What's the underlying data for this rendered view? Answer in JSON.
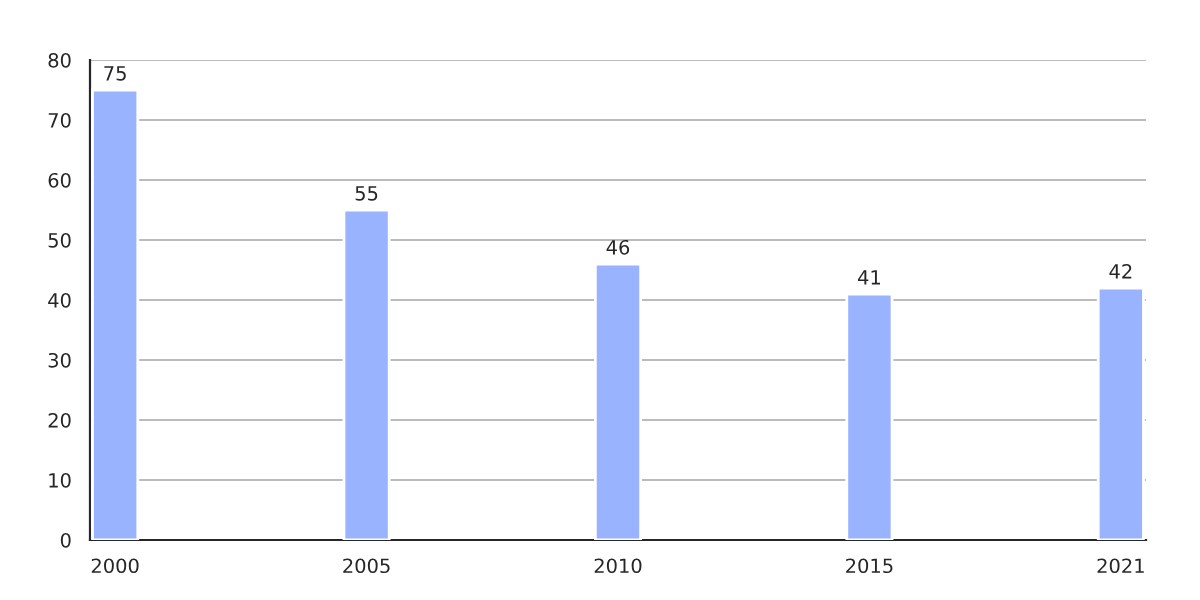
{
  "chart_data": {
    "type": "bar",
    "categories": [
      "2000",
      "2005",
      "2010",
      "2015",
      "2021"
    ],
    "values": [
      75,
      55,
      46,
      41,
      42
    ],
    "color": "#99b3ff",
    "ylim": [
      0,
      80
    ],
    "yticks": [
      0,
      10,
      20,
      30,
      40,
      50,
      60,
      70,
      80
    ],
    "grid": "y",
    "data_labels": true
  }
}
